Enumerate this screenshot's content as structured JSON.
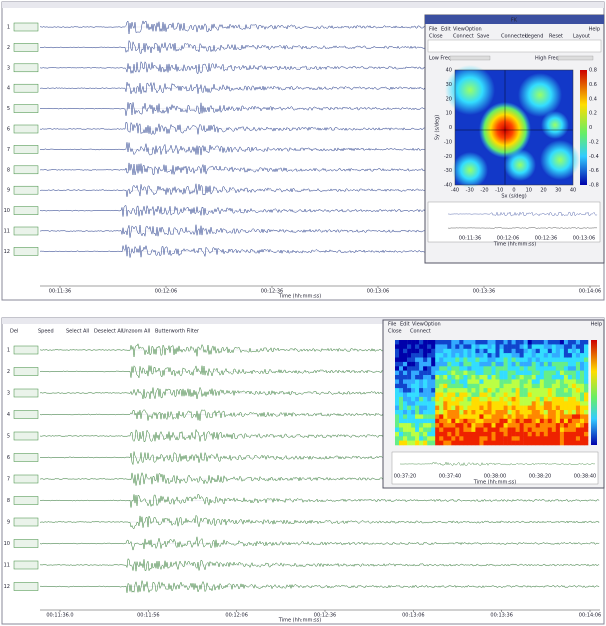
{
  "top_window": {
    "trace_labels": [
      "1",
      "2",
      "3",
      "4",
      "5",
      "6",
      "7",
      "8",
      "9",
      "10",
      "11",
      "12"
    ],
    "time_labels": [
      "00:11:36",
      "00:12:06",
      "00:12:36",
      "00:13:06",
      "00:13:36",
      "00:14:06"
    ],
    "time_axis_title": "Time (hh:mm:ss)"
  },
  "fk_window": {
    "title": "FK",
    "menu": [
      "File",
      "Edit",
      "View",
      "Option"
    ],
    "help": "Help",
    "toolbar": [
      "Close",
      "Connect",
      "Save",
      "Connected",
      "Legend",
      "Reset",
      "Layout"
    ],
    "low_freq_label": "Low Freq.",
    "high_freq_label": "High Freq.",
    "x_axis_title": "Sx (s/deg)",
    "y_axis_title": "Sy (s/deg)",
    "x_ticks": [
      "-40",
      "-30",
      "-20",
      "-10",
      "0",
      "10",
      "20",
      "30",
      "40"
    ],
    "y_ticks": [
      "40",
      "30",
      "20",
      "10",
      "0",
      "-10",
      "-20",
      "-30",
      "-40"
    ],
    "colorbar_ticks": [
      "0.8",
      "0.6",
      "0.4",
      "0.2",
      "0",
      "-0.2",
      "-0.4",
      "-0.6",
      "-0.8"
    ],
    "trace_time_labels": [
      "00:11:36",
      "00:12:06",
      "00:12:36",
      "00:13:06"
    ],
    "trace_axis_title": "Time (hh:mm:ss)"
  },
  "bottom_window": {
    "toolbar": [
      "Del",
      "Speed",
      "Select All",
      "Deselect All",
      "Unzoom All"
    ],
    "filter": "Butterworth Filter",
    "trace_labels": [
      "1",
      "2",
      "3",
      "4",
      "5",
      "6",
      "7",
      "8",
      "9",
      "10",
      "11",
      "12"
    ],
    "time_labels": [
      "00:11:36.0",
      "00:11:56",
      "00:12:06",
      "00:12:36",
      "00:13:06",
      "00:13:36",
      "00:14:06"
    ],
    "time_axis_title": "Time (hh:mm:ss)"
  },
  "spectrogram_window": {
    "menu": [
      "File",
      "Edit",
      "View",
      "Option"
    ],
    "help": "Help",
    "toolbar": [
      "Close",
      "Connect"
    ],
    "time_labels": [
      "00:37:20",
      "00:37:40",
      "00:38:00",
      "00:38:20",
      "00:38:40"
    ],
    "time_axis_title": "Time (hh:mm:ss)"
  }
}
